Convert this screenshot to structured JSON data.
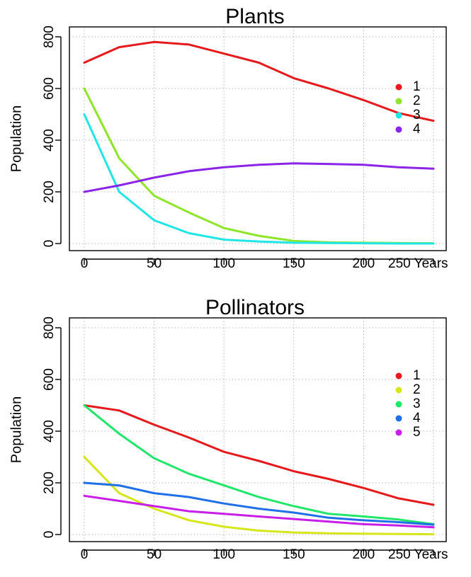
{
  "chart_data": [
    {
      "type": "line",
      "title": "Plants",
      "xlabel": "",
      "ylabel": "Population",
      "xlim": [
        0,
        250
      ],
      "ylim": [
        0,
        800
      ],
      "xticks": [
        "0",
        "50",
        "100",
        "150",
        "200",
        "250 Years"
      ],
      "yticks": [
        "0",
        "200",
        "400",
        "600",
        "800"
      ],
      "grid": true,
      "legend_position": "right",
      "x": [
        0,
        25,
        50,
        75,
        100,
        125,
        150,
        175,
        200,
        225,
        250
      ],
      "series": [
        {
          "name": "1",
          "color": "#e41a1c",
          "values": [
            700,
            760,
            780,
            770,
            735,
            700,
            640,
            600,
            555,
            505,
            475
          ]
        },
        {
          "name": "2",
          "color": "#8ee52a",
          "values": [
            600,
            330,
            185,
            120,
            60,
            30,
            10,
            5,
            3,
            2,
            1
          ]
        },
        {
          "name": "3",
          "color": "#22e6e6",
          "values": [
            500,
            200,
            90,
            40,
            15,
            8,
            3,
            2,
            1,
            0,
            0
          ]
        },
        {
          "name": "4",
          "color": "#8a24e6",
          "values": [
            200,
            225,
            255,
            280,
            295,
            305,
            310,
            308,
            305,
            295,
            290
          ]
        }
      ]
    },
    {
      "type": "line",
      "title": "Pollinators",
      "xlabel": "",
      "ylabel": "Population",
      "xlim": [
        0,
        250
      ],
      "ylim": [
        0,
        800
      ],
      "xticks": [
        "0",
        "50",
        "100",
        "150",
        "200",
        "250 Years"
      ],
      "yticks": [
        "0",
        "200",
        "400",
        "600",
        "800"
      ],
      "grid": true,
      "legend_position": "right",
      "x": [
        0,
        25,
        50,
        75,
        100,
        125,
        150,
        175,
        200,
        225,
        250
      ],
      "series": [
        {
          "name": "1",
          "color": "#e41a1c",
          "values": [
            500,
            480,
            425,
            375,
            320,
            285,
            245,
            215,
            180,
            140,
            115
          ]
        },
        {
          "name": "2",
          "color": "#d5e61a",
          "values": [
            300,
            160,
            100,
            55,
            30,
            15,
            8,
            5,
            3,
            2,
            1
          ]
        },
        {
          "name": "3",
          "color": "#22e66a",
          "values": [
            500,
            390,
            295,
            235,
            190,
            145,
            110,
            80,
            70,
            58,
            40
          ]
        },
        {
          "name": "4",
          "color": "#1f6fe6",
          "values": [
            200,
            190,
            160,
            145,
            120,
            100,
            85,
            65,
            55,
            48,
            38
          ]
        },
        {
          "name": "5",
          "color": "#c81fe6",
          "values": [
            150,
            130,
            110,
            90,
            80,
            70,
            60,
            50,
            40,
            35,
            28
          ]
        }
      ]
    }
  ]
}
